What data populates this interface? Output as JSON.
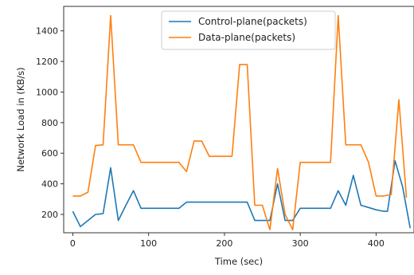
{
  "chart_data": {
    "type": "line",
    "xlabel": "Time (sec)",
    "ylabel": "Network Load in (KB/s)",
    "xlim": [
      -12,
      450
    ],
    "ylim": [
      80,
      1560
    ],
    "xticks": [
      0,
      100,
      200,
      300,
      400
    ],
    "yticks": [
      200,
      400,
      600,
      800,
      1000,
      1200,
      1400
    ],
    "grid": false,
    "legend_position": "top-center",
    "series": [
      {
        "name": "Control-plane(packets)",
        "color": "#1f77b4",
        "points": [
          [
            0,
            220
          ],
          [
            10,
            120
          ],
          [
            20,
            160
          ],
          [
            30,
            200
          ],
          [
            40,
            205
          ],
          [
            50,
            505
          ],
          [
            60,
            160
          ],
          [
            70,
            260
          ],
          [
            80,
            355
          ],
          [
            90,
            240
          ],
          [
            100,
            240
          ],
          [
            110,
            240
          ],
          [
            120,
            240
          ],
          [
            130,
            240
          ],
          [
            140,
            240
          ],
          [
            150,
            280
          ],
          [
            160,
            280
          ],
          [
            170,
            280
          ],
          [
            180,
            280
          ],
          [
            190,
            280
          ],
          [
            200,
            280
          ],
          [
            210,
            280
          ],
          [
            220,
            280
          ],
          [
            230,
            280
          ],
          [
            240,
            160
          ],
          [
            250,
            160
          ],
          [
            260,
            160
          ],
          [
            270,
            400
          ],
          [
            280,
            160
          ],
          [
            290,
            160
          ],
          [
            300,
            240
          ],
          [
            310,
            240
          ],
          [
            320,
            240
          ],
          [
            330,
            240
          ],
          [
            340,
            240
          ],
          [
            350,
            355
          ],
          [
            360,
            260
          ],
          [
            370,
            455
          ],
          [
            380,
            260
          ],
          [
            390,
            245
          ],
          [
            400,
            230
          ],
          [
            410,
            220
          ],
          [
            415,
            220
          ],
          [
            425,
            550
          ],
          [
            435,
            380
          ],
          [
            445,
            110
          ]
        ]
      },
      {
        "name": "Data-plane(packets)",
        "color": "#ff7f0e",
        "points": [
          [
            0,
            320
          ],
          [
            10,
            320
          ],
          [
            20,
            345
          ],
          [
            30,
            650
          ],
          [
            40,
            655
          ],
          [
            50,
            1500
          ],
          [
            60,
            655
          ],
          [
            70,
            655
          ],
          [
            80,
            655
          ],
          [
            90,
            540
          ],
          [
            100,
            540
          ],
          [
            110,
            540
          ],
          [
            120,
            540
          ],
          [
            130,
            540
          ],
          [
            140,
            540
          ],
          [
            150,
            480
          ],
          [
            160,
            680
          ],
          [
            170,
            680
          ],
          [
            180,
            580
          ],
          [
            190,
            580
          ],
          [
            200,
            580
          ],
          [
            210,
            580
          ],
          [
            220,
            1180
          ],
          [
            230,
            1180
          ],
          [
            240,
            260
          ],
          [
            250,
            260
          ],
          [
            260,
            100
          ],
          [
            270,
            500
          ],
          [
            280,
            200
          ],
          [
            290,
            100
          ],
          [
            300,
            540
          ],
          [
            310,
            540
          ],
          [
            320,
            540
          ],
          [
            330,
            540
          ],
          [
            340,
            540
          ],
          [
            350,
            1500
          ],
          [
            360,
            655
          ],
          [
            370,
            655
          ],
          [
            380,
            655
          ],
          [
            390,
            540
          ],
          [
            400,
            320
          ],
          [
            410,
            320
          ],
          [
            420,
            330
          ],
          [
            430,
            950
          ],
          [
            440,
            310
          ]
        ]
      }
    ]
  }
}
